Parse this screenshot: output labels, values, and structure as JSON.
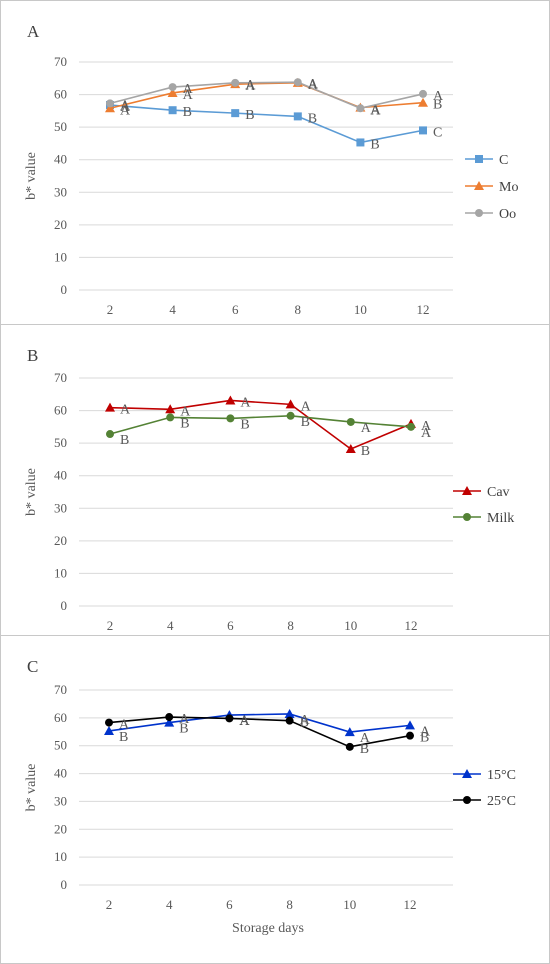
{
  "chart_data": [
    {
      "type": "line",
      "panel_label": "A",
      "categories": [
        "2",
        "4",
        "6",
        "8",
        "10",
        "12"
      ],
      "ylabel": "b* value",
      "xlabel": "",
      "ylim": [
        0,
        70
      ],
      "yticks": [
        "0",
        "10",
        "20",
        "30",
        "40",
        "50",
        "60",
        "70"
      ],
      "grid": true,
      "legend_position": "right",
      "series": [
        {
          "name": "C",
          "color": "#5B9BD5",
          "marker": "square",
          "values": [
            56.8,
            55.2,
            54.3,
            53.3,
            45.3,
            49.0
          ],
          "letters": [
            "A",
            "B",
            "B",
            "B",
            "B",
            "C"
          ]
        },
        {
          "name": "Mo",
          "color": "#ED7D31",
          "marker": "triangle",
          "values": [
            55.8,
            60.5,
            63.2,
            63.6,
            56.0,
            57.5
          ],
          "letters": [
            "A",
            "A",
            "A",
            "A",
            "A",
            "B"
          ]
        },
        {
          "name": "Oo",
          "color": "#A5A5A5",
          "marker": "circle",
          "values": [
            57.3,
            62.3,
            63.6,
            63.8,
            55.8,
            60.2
          ],
          "letters": [
            "A",
            "A",
            "A",
            "A",
            "A",
            "A"
          ]
        }
      ]
    },
    {
      "type": "line",
      "panel_label": "B",
      "categories": [
        "2",
        "4",
        "6",
        "8",
        "10",
        "12"
      ],
      "ylabel": "b* value",
      "xlabel": "",
      "ylim": [
        0,
        70
      ],
      "yticks": [
        "0",
        "10",
        "20",
        "30",
        "40",
        "50",
        "60",
        "70"
      ],
      "grid": true,
      "legend_position": "right",
      "series": [
        {
          "name": "Cav",
          "color": "#C00000",
          "marker": "triangle",
          "values": [
            60.9,
            60.4,
            63.1,
            61.9,
            48.2,
            55.9
          ],
          "letters": [
            "A",
            "A",
            "A",
            "A",
            "B",
            "A"
          ]
        },
        {
          "name": "Milk",
          "color": "#548235",
          "marker": "circle",
          "values": [
            52.8,
            57.9,
            57.6,
            58.4,
            56.5,
            55.0
          ],
          "letters": [
            "B",
            "B",
            "B",
            "B",
            "A",
            "A"
          ]
        }
      ]
    },
    {
      "type": "line",
      "panel_label": "C",
      "categories": [
        "2",
        "4",
        "6",
        "8",
        "10",
        "12"
      ],
      "ylabel": "b* value",
      "xlabel": "Storage days",
      "ylim": [
        0,
        70
      ],
      "yticks": [
        "0",
        "10",
        "20",
        "30",
        "40",
        "50",
        "60",
        "70"
      ],
      "grid": true,
      "legend_position": "right",
      "series": [
        {
          "name": "15°C",
          "color": "#0033CC",
          "marker": "triangle",
          "values": [
            55.3,
            58.3,
            61.0,
            61.4,
            54.9,
            57.3
          ],
          "letters": [
            "B",
            "B",
            "A",
            "A",
            "A",
            "A"
          ]
        },
        {
          "name": "25°C",
          "color": "#000000",
          "marker": "circle",
          "values": [
            58.3,
            60.3,
            59.8,
            59.0,
            49.6,
            53.6
          ],
          "letters": [
            "A",
            "A",
            "A",
            "B",
            "B",
            "B"
          ]
        }
      ]
    }
  ]
}
